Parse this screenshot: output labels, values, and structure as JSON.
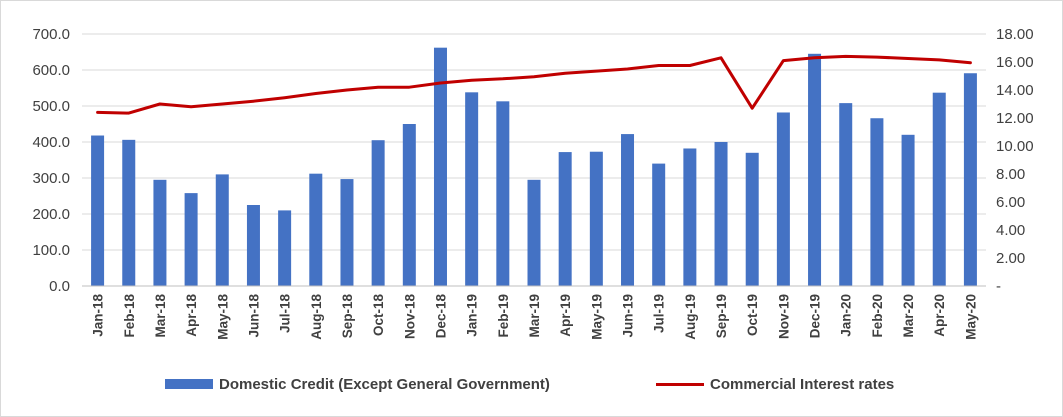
{
  "chart_data": {
    "type": "bar",
    "title": "",
    "xlabel": "",
    "ylabel": "",
    "y2label": "",
    "categories": [
      "Jan-18",
      "Feb-18",
      "Mar-18",
      "Apr-18",
      "May-18",
      "Jun-18",
      "Jul-18",
      "Aug-18",
      "Sep-18",
      "Oct-18",
      "Nov-18",
      "Dec-18",
      "Jan-19",
      "Feb-19",
      "Mar-19",
      "Apr-19",
      "May-19",
      "Jun-19",
      "Jul-19",
      "Aug-19",
      "Sep-19",
      "Oct-19",
      "Nov-19",
      "Dec-19",
      "Jan-20",
      "Feb-20",
      "Mar-20",
      "Apr-20",
      "May-20"
    ],
    "series": [
      {
        "name": "Domestic Credit (Except General Government)",
        "type": "bar",
        "axis": "left",
        "color": "#4472C4",
        "values": [
          418,
          406,
          295,
          258,
          310,
          225,
          210,
          312,
          297,
          405,
          450,
          662,
          538,
          513,
          295,
          372,
          373,
          422,
          340,
          382,
          400,
          370,
          482,
          645,
          508,
          466,
          420,
          537,
          591
        ]
      },
      {
        "name": "Commercial Interest rates",
        "type": "line",
        "axis": "right",
        "color": "#C00000",
        "values": [
          12.4,
          12.35,
          13.0,
          12.8,
          13.0,
          13.2,
          13.45,
          13.75,
          14.0,
          14.2,
          14.2,
          14.5,
          14.7,
          14.8,
          14.95,
          15.2,
          15.35,
          15.5,
          15.75,
          15.75,
          16.3,
          12.7,
          16.1,
          16.3,
          16.4,
          16.35,
          16.25,
          16.15,
          15.95
        ]
      }
    ],
    "y_left": {
      "min": 0,
      "max": 700,
      "ticks": [
        "0.0",
        "100.0",
        "200.0",
        "300.0",
        "400.0",
        "500.0",
        "600.0",
        "700.0"
      ]
    },
    "y_right": {
      "min": 0,
      "max": 18,
      "ticks": [
        "-",
        "2.00",
        "4.00",
        "6.00",
        "8.00",
        "10.00",
        "12.00",
        "14.00",
        "16.00",
        "18.00"
      ]
    },
    "grid": true,
    "legend_position": "bottom"
  }
}
